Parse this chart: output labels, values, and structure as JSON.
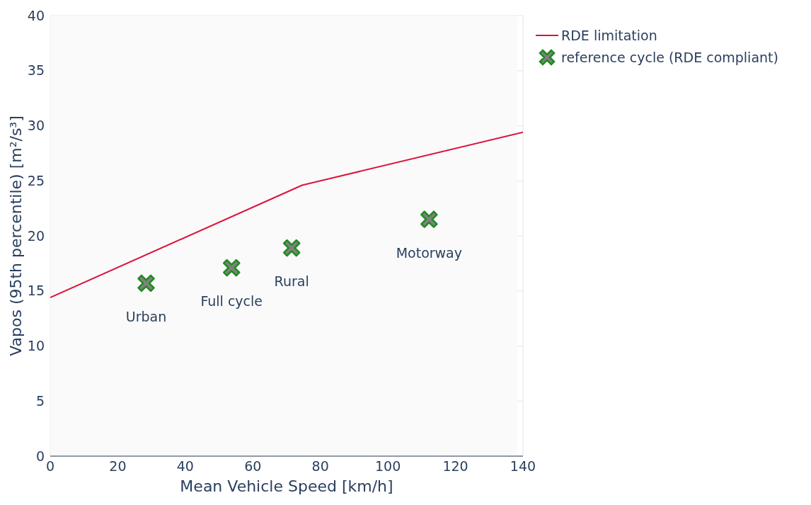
{
  "chart_data": {
    "type": "scatter",
    "xlabel": "Mean Vehicle Speed [km/h]",
    "ylabel": "Vapos (95th percentile) [m²/s³]",
    "xlim": [
      0,
      140
    ],
    "xticks": [
      0,
      20,
      40,
      60,
      80,
      100,
      120,
      140
    ],
    "ylim": [
      0,
      40
    ],
    "yticks": [
      0,
      5,
      10,
      15,
      20,
      25,
      30,
      35,
      40
    ],
    "grid": true,
    "legend": "top right",
    "series": [
      {
        "name": "RDE limitation",
        "type": "line",
        "color": "#dc143c",
        "marker": "none",
        "line_style": "solid",
        "x": [
          0,
          74.6,
          140
        ],
        "values": [
          14.4,
          24.6,
          29.4
        ]
      },
      {
        "name": "reference cycle (RDE compliant)",
        "type": "scatter",
        "color": "#1e8c1e",
        "marker": "cross",
        "x": [
          28.4,
          53.7,
          71.5,
          112.2
        ],
        "values": [
          15.7,
          17.1,
          18.9,
          21.5
        ]
      }
    ],
    "annotations": [
      {
        "text": "Urban",
        "x": 28.4,
        "y": 15.7
      },
      {
        "text": "Full cycle",
        "x": 53.7,
        "y": 17.1
      },
      {
        "text": "Rural",
        "x": 71.5,
        "y": 18.9
      },
      {
        "text": "Motorway",
        "x": 112.2,
        "y": 21.5
      }
    ]
  }
}
